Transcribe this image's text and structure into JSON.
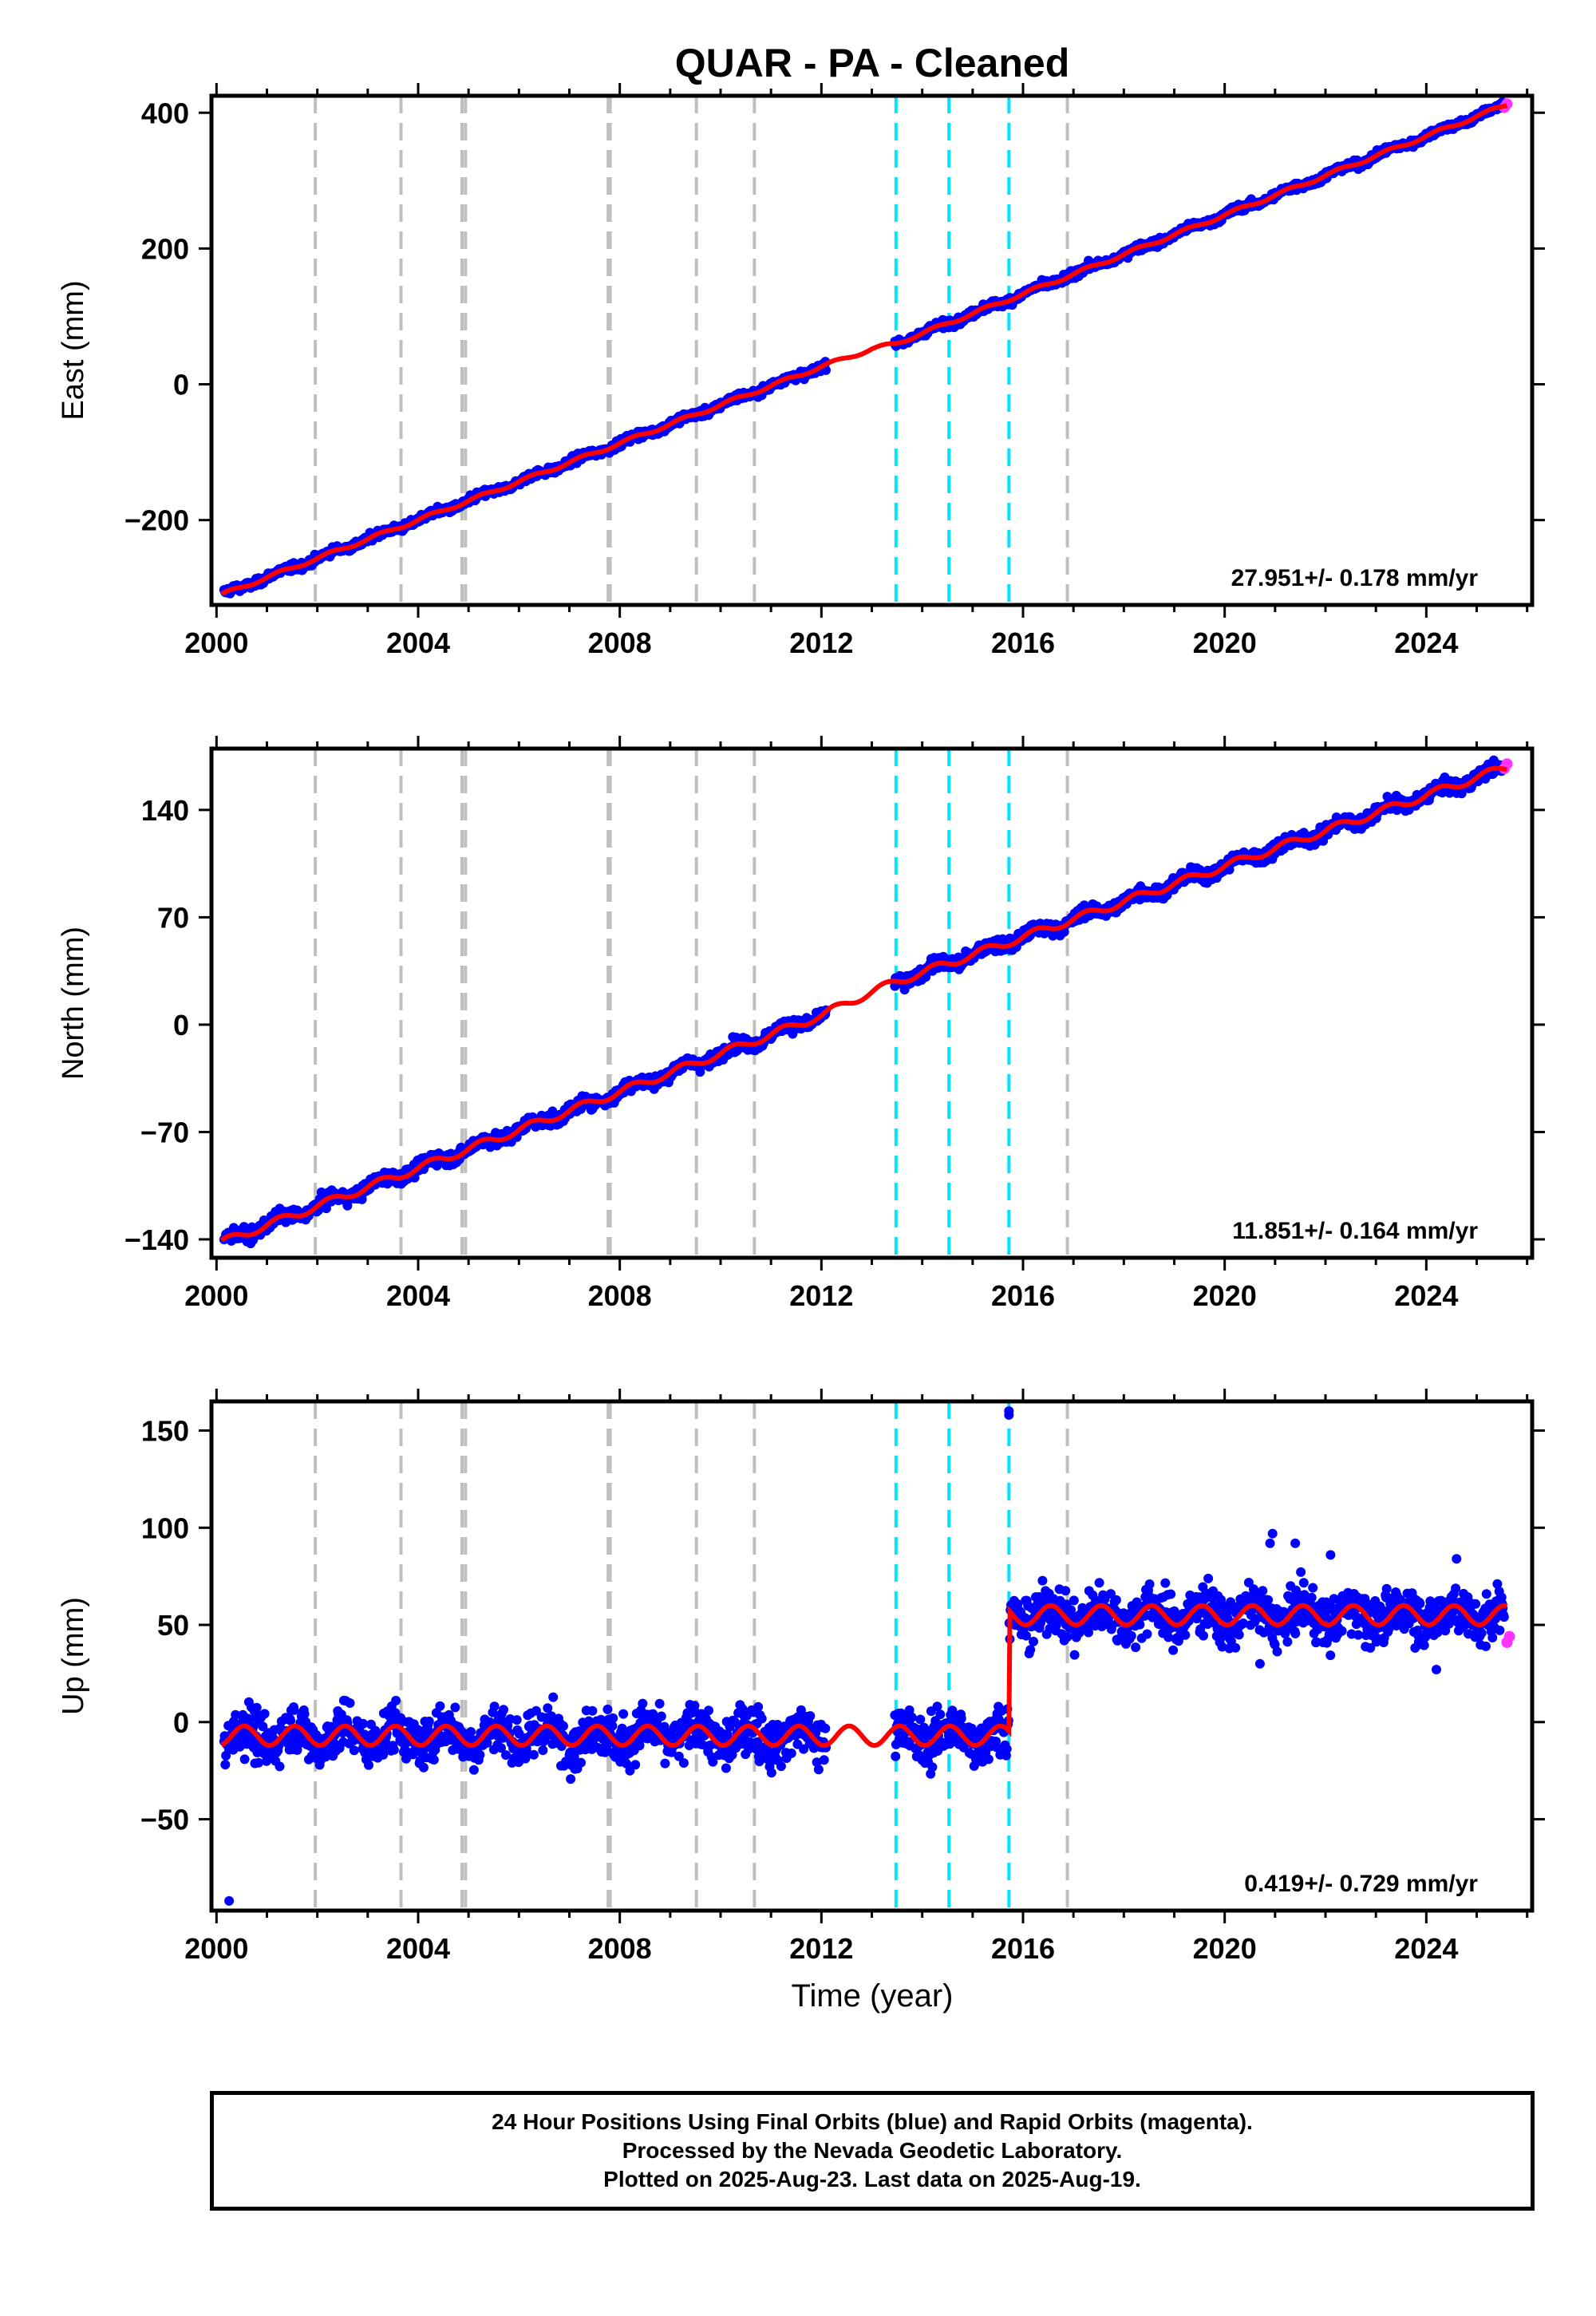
{
  "title": "QUAR  - PA - Cleaned",
  "colors": {
    "final_orbit": "#0000ff",
    "rapid_orbit": "#ff33ff",
    "model_fit": "#ff0000",
    "equipment_change": "#bfbfbf",
    "earthquake": "#00e5ff"
  },
  "x_ticks": [
    "2000",
    "2004",
    "2008",
    "2012",
    "2016",
    "2020",
    "2024"
  ],
  "xlabel": "Time (year)",
  "gray_events": [
    2001.96,
    2003.66,
    2004.87,
    2004.94,
    2007.77,
    2007.81,
    2009.52,
    2010.67,
    2016.88
  ],
  "cyan_events": [
    2013.48,
    2014.53,
    2015.72
  ],
  "footer": {
    "line1": "24 Hour Positions Using Final Orbits (blue) and Rapid Orbits (magenta).",
    "line2": "Processed by the Nevada Geodetic Laboratory.",
    "line3": "Plotted on 2025-Aug-23. Last data on 2025-Aug-19."
  },
  "chart_data": [
    {
      "type": "scatter",
      "component": "east",
      "ylabel": "East (mm)",
      "xlim": [
        1999.9,
        2026.1
      ],
      "ylim": [
        -325,
        425
      ],
      "y_ticks": [
        -200,
        0,
        200,
        400
      ],
      "velocity_text": "27.951+/- 0.178 mm/yr",
      "fit": [
        [
          2000.1,
          -310
        ],
        [
          2012.0,
          26
        ],
        [
          2013.0,
          52
        ],
        [
          2013.48,
          60
        ],
        [
          2025.6,
          412
        ]
      ],
      "gaps": [
        [
          2012.1,
          2013.45
        ]
      ],
      "noise": 4,
      "rapid": [
        [
          2025.55,
          408
        ],
        [
          2025.6,
          413
        ]
      ]
    },
    {
      "type": "scatter",
      "component": "north",
      "ylabel": "North (mm)",
      "xlim": [
        1999.9,
        2026.1
      ],
      "ylim": [
        -152,
        180
      ],
      "y_ticks": [
        -140,
        -70,
        0,
        70,
        140
      ],
      "velocity_text": "11.851+/- 0.164 mm/yr",
      "fit": [
        [
          2000.1,
          -142
        ],
        [
          2012.0,
          6
        ],
        [
          2012.5,
          14
        ],
        [
          2013.48,
          28
        ],
        [
          2025.6,
          168
        ]
      ],
      "gaps": [
        [
          2012.1,
          2013.45
        ]
      ],
      "noise": 3,
      "rapid": [
        [
          2025.55,
          167
        ],
        [
          2025.6,
          170
        ]
      ]
    },
    {
      "type": "scatter",
      "component": "up",
      "ylabel": "Up (mm)",
      "xlim": [
        1999.9,
        2026.1
      ],
      "ylim": [
        -97,
        165
      ],
      "y_ticks": [
        -50,
        0,
        50,
        100,
        150
      ],
      "velocity_text": "0.419+/- 0.729 mm/yr",
      "offset_year": 2015.72,
      "level_before": -7,
      "level_after": 55,
      "seasonal_amplitude": 5,
      "noise": 9,
      "gaps": [
        [
          2012.1,
          2013.45
        ],
        [
          2015.77,
          2015.82
        ]
      ],
      "outliers": [
        [
          2000.25,
          -92
        ],
        [
          2015.72,
          158
        ],
        [
          2015.72,
          160
        ],
        [
          2020.95,
          97
        ],
        [
          2020.9,
          92
        ],
        [
          2022.1,
          86
        ],
        [
          2021.4,
          92
        ],
        [
          2024.6,
          84
        ],
        [
          2020.7,
          30
        ],
        [
          2024.2,
          27
        ]
      ],
      "rapid": [
        [
          2025.6,
          41
        ],
        [
          2025.65,
          44
        ]
      ]
    }
  ],
  "x_values_note": ""
}
